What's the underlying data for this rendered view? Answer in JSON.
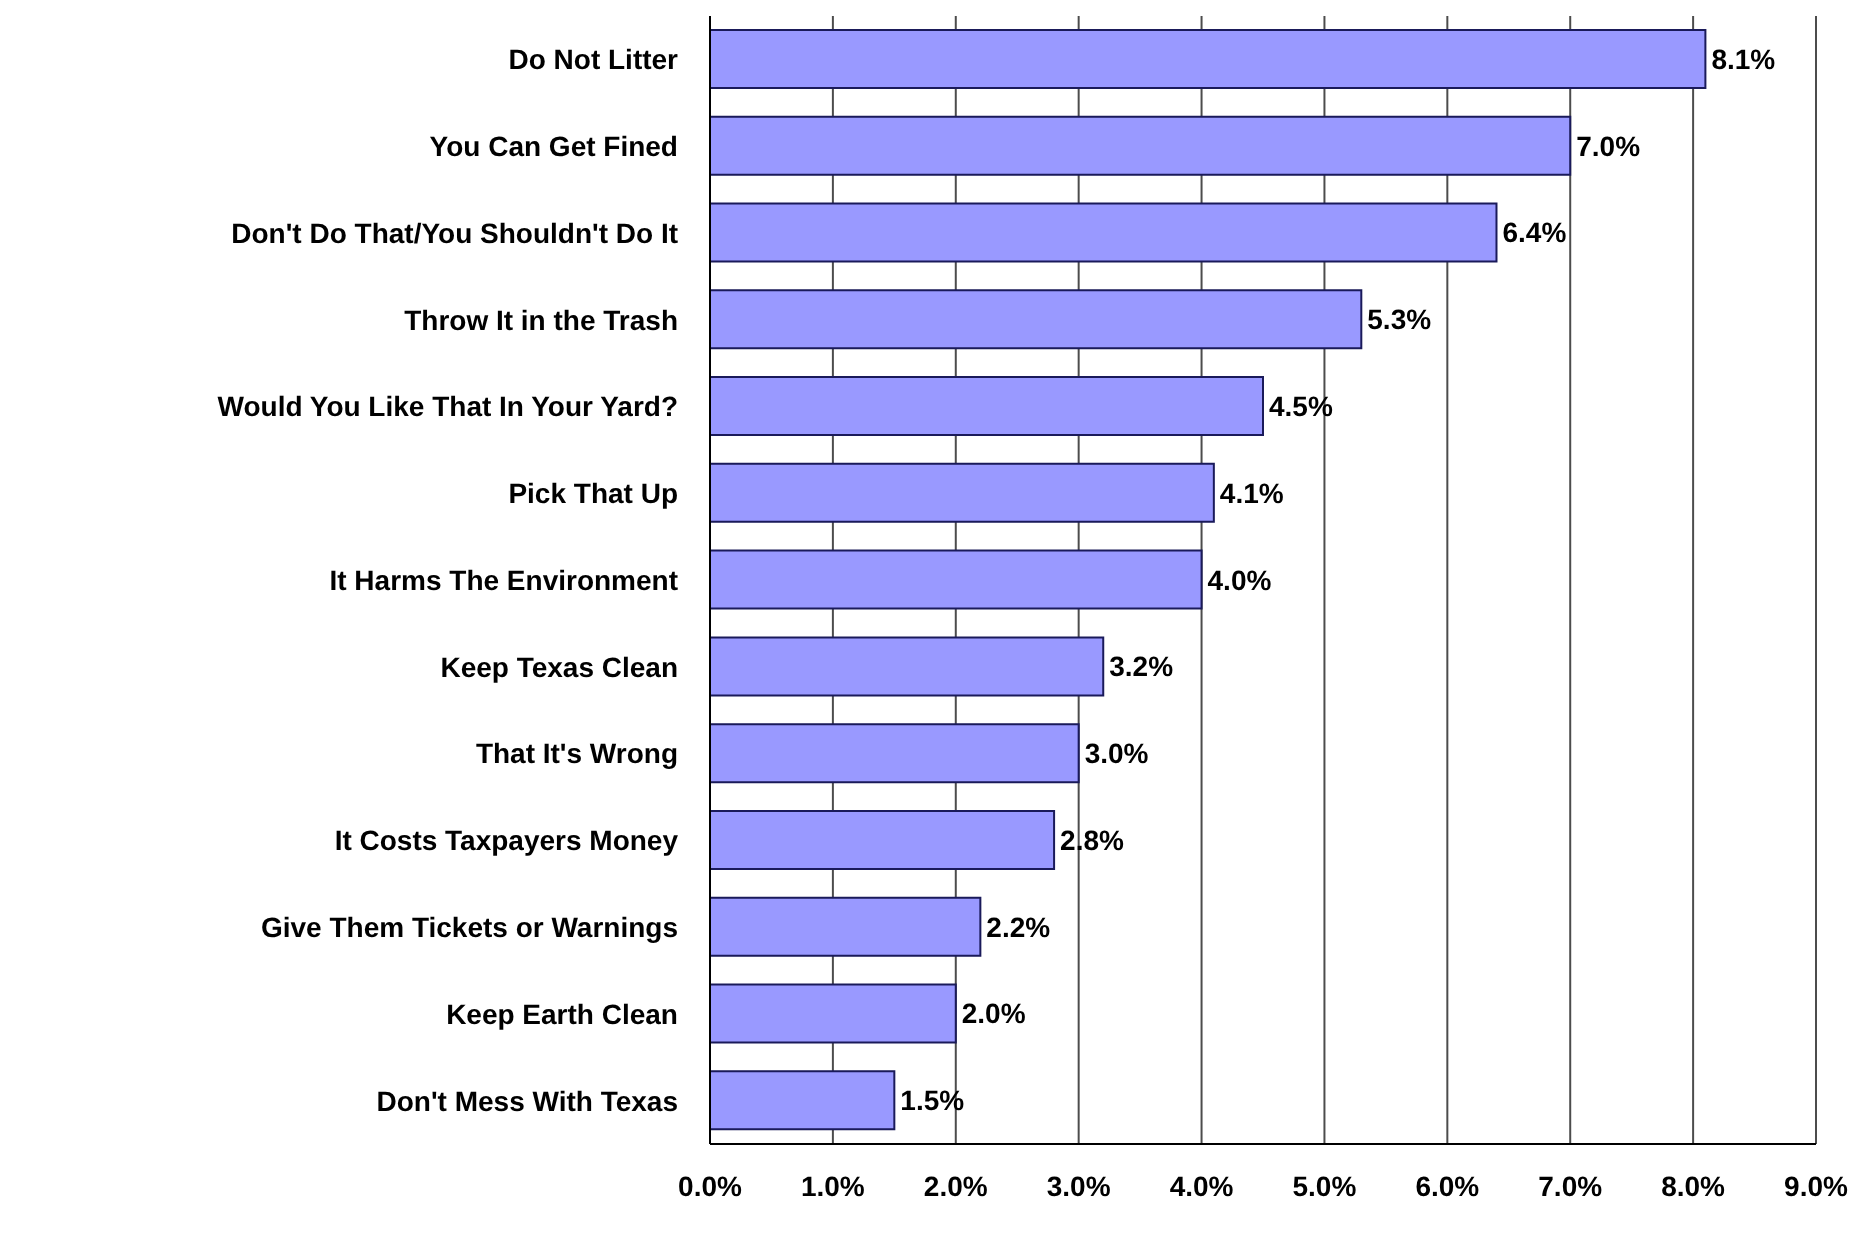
{
  "chart_data": {
    "type": "bar",
    "orientation": "horizontal",
    "categories": [
      "Do Not Litter",
      "You Can Get Fined",
      "Don't Do That/You Shouldn't Do It",
      "Throw It in the Trash",
      "Would You Like That In Your Yard?",
      "Pick That Up",
      "It Harms The Environment",
      "Keep Texas Clean",
      "That It's Wrong",
      "It Costs Taxpayers Money",
      "Give Them Tickets or Warnings",
      "Keep Earth Clean",
      "Don't Mess With Texas"
    ],
    "values": [
      8.1,
      7.0,
      6.4,
      5.3,
      4.5,
      4.1,
      4.0,
      3.2,
      3.0,
      2.8,
      2.2,
      2.0,
      1.5
    ],
    "value_labels": [
      "8.1%",
      "7.0%",
      "6.4%",
      "5.3%",
      "4.5%",
      "4.1%",
      "4.0%",
      "3.2%",
      "3.0%",
      "2.8%",
      "2.2%",
      "2.0%",
      "1.5%"
    ],
    "color": "#9999ff",
    "xlim": [
      0,
      9
    ],
    "xticks": [
      {
        "value": 0,
        "label": "0.0%"
      },
      {
        "value": 1,
        "label": "1.0%"
      },
      {
        "value": 2,
        "label": "2.0%"
      },
      {
        "value": 3,
        "label": "3.0%"
      },
      {
        "value": 4,
        "label": "4.0%"
      },
      {
        "value": 5,
        "label": "5.0%"
      },
      {
        "value": 6,
        "label": "6.0%"
      },
      {
        "value": 7,
        "label": "7.0%"
      },
      {
        "value": 8,
        "label": "8.0%"
      },
      {
        "value": 9,
        "label": "9.0%"
      }
    ],
    "grid": "x",
    "legend": false
  }
}
